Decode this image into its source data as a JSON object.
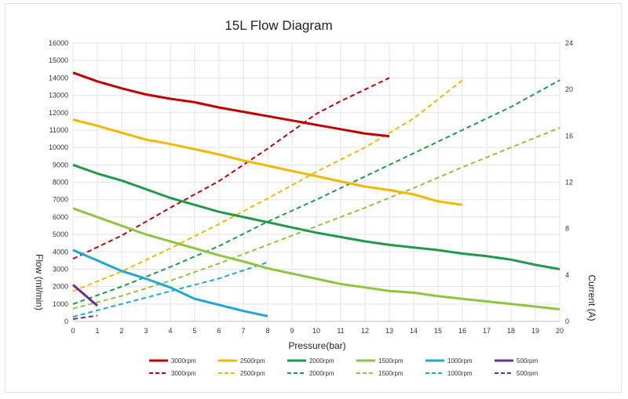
{
  "chart_data": {
    "type": "line",
    "title": "15L Flow Diagram",
    "xlabel": "Pressure(bar)",
    "ylabel": "Flow (ml/min)",
    "y2label": "Current (A)",
    "xlim": [
      0,
      20
    ],
    "ylim": [
      0,
      16000
    ],
    "y2lim": [
      0,
      24
    ],
    "xticks": [
      "0",
      "1",
      "2",
      "3",
      "4",
      "5",
      "6",
      "7",
      "8",
      "9",
      "10",
      "11",
      "12",
      "13",
      "14",
      "15",
      "16",
      "17",
      "18",
      "19",
      "20"
    ],
    "yticks": [
      "0",
      "1000",
      "2000",
      "3000",
      "4000",
      "5000",
      "6000",
      "7000",
      "8000",
      "9000",
      "10000",
      "11000",
      "12000",
      "13000",
      "14000",
      "15000",
      "16000"
    ],
    "y2ticks": [
      "0",
      "4",
      "8",
      "12",
      "16",
      "20",
      "24"
    ],
    "grid": true,
    "legend_position": "bottom",
    "flow_series": [
      {
        "name": "3000rpm",
        "color": "#c00000",
        "x": [
          0,
          1,
          2,
          3,
          4,
          5,
          6,
          7,
          8,
          9,
          10,
          11,
          12,
          13
        ],
        "values": [
          14300,
          13800,
          13400,
          13050,
          12800,
          12600,
          12300,
          12050,
          11800,
          11550,
          11300,
          11050,
          10800,
          10650
        ]
      },
      {
        "name": "2500rpm",
        "color": "#f2b800",
        "x": [
          0,
          1,
          2,
          3,
          4,
          5,
          6,
          7,
          8,
          9,
          10,
          11,
          12,
          13,
          14,
          15,
          16
        ],
        "values": [
          11600,
          11250,
          10850,
          10450,
          10200,
          9900,
          9600,
          9250,
          8950,
          8650,
          8350,
          8050,
          7750,
          7550,
          7300,
          6900,
          6700
        ]
      },
      {
        "name": "2000rpm",
        "color": "#1e9a4a",
        "x": [
          0,
          1,
          2,
          3,
          4,
          5,
          6,
          7,
          8,
          9,
          10,
          11,
          12,
          13,
          14,
          15,
          16,
          17,
          18,
          19,
          20
        ],
        "values": [
          9000,
          8500,
          8100,
          7600,
          7100,
          6700,
          6300,
          6000,
          5700,
          5400,
          5100,
          4850,
          4600,
          4400,
          4250,
          4100,
          3900,
          3750,
          3550,
          3250,
          3000
        ]
      },
      {
        "name": "1500rpm",
        "color": "#8cc63f",
        "x": [
          0,
          1,
          2,
          3,
          4,
          5,
          6,
          7,
          8,
          9,
          10,
          11,
          12,
          13,
          14,
          15,
          16,
          17,
          18,
          19,
          20
        ],
        "values": [
          6500,
          6000,
          5500,
          5000,
          4600,
          4200,
          3800,
          3450,
          3050,
          2750,
          2450,
          2150,
          1950,
          1750,
          1650,
          1450,
          1300,
          1150,
          1000,
          850,
          700
        ]
      },
      {
        "name": "1000rpm",
        "color": "#1ea7d6",
        "x": [
          0,
          1,
          2,
          3,
          4,
          5,
          6,
          7,
          8
        ],
        "values": [
          4100,
          3500,
          2900,
          2450,
          1950,
          1300,
          950,
          600,
          300
        ]
      },
      {
        "name": "500rpm",
        "color": "#6a2c91",
        "x": [
          0,
          1
        ],
        "values": [
          2100,
          900
        ]
      }
    ],
    "current_series": [
      {
        "name": "3000rpm",
        "color": "#c00000",
        "x": [
          0,
          2,
          4,
          6,
          8,
          10,
          11,
          12,
          13
        ],
        "values": [
          5.4,
          7.4,
          9.8,
          12.1,
          14.9,
          17.9,
          19.0,
          20.0,
          21.0
        ]
      },
      {
        "name": "2500rpm",
        "color": "#f2b800",
        "x": [
          0,
          2,
          4,
          6,
          8,
          10,
          12,
          14,
          16
        ],
        "values": [
          2.6,
          4.3,
          6.3,
          8.4,
          10.6,
          12.9,
          15.0,
          17.5,
          20.8
        ]
      },
      {
        "name": "2000rpm",
        "color": "#1e9a4a",
        "x": [
          0,
          2,
          4,
          6,
          8,
          10,
          12,
          14,
          16,
          18,
          20
        ],
        "values": [
          1.5,
          3.0,
          4.7,
          6.5,
          8.6,
          10.5,
          12.5,
          14.5,
          16.5,
          18.5,
          20.8
        ]
      },
      {
        "name": "1500rpm",
        "color": "#8cc63f",
        "x": [
          0,
          2,
          4,
          6,
          8,
          10,
          12,
          14,
          16,
          18,
          20
        ],
        "values": [
          1.1,
          2.2,
          3.5,
          5.0,
          6.6,
          8.2,
          9.8,
          11.5,
          13.3,
          15.0,
          16.7
        ]
      },
      {
        "name": "1000rpm",
        "color": "#1ea7d6",
        "x": [
          0,
          2,
          4,
          6,
          8
        ],
        "values": [
          0.4,
          1.5,
          2.6,
          3.7,
          5.1
        ]
      },
      {
        "name": "500rpm",
        "color": "#6a2c91",
        "x": [
          0,
          1
        ],
        "values": [
          0.2,
          0.5
        ]
      }
    ]
  }
}
